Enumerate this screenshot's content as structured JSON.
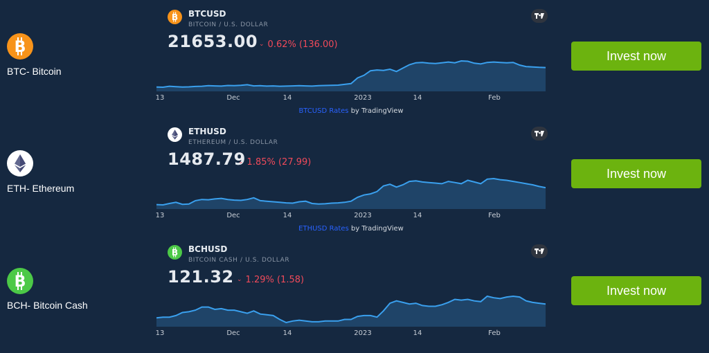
{
  "tradingview_credit": "by TradingView",
  "x_ticks": [
    "13",
    "Dec",
    "14",
    "2023",
    "14",
    "Feb"
  ],
  "colors": {
    "background": "#152840",
    "button": "#6cb30f",
    "negative": "#f04a5a",
    "line": "#3aa0ee",
    "link": "#2962ff"
  },
  "rows": [
    {
      "coin_label": "BTC- Bitcoin",
      "coin_icon": "bitcoin-icon",
      "icon_color": "#f7931a",
      "symbol": "BTCUSD",
      "description": "BITCOIN / U.S. DOLLAR",
      "price": "21653.00",
      "change": "0.62% (136.00)",
      "rates_link": "BTCUSD Rates",
      "button_label": "Invest now",
      "series": [
        16500,
        16450,
        16700,
        16600,
        16500,
        16550,
        16650,
        16700,
        16850,
        16800,
        16750,
        16900,
        16850,
        16950,
        17100,
        16800,
        16850,
        16750,
        16800,
        16700,
        16750,
        16800,
        16850,
        16800,
        16750,
        16850,
        16900,
        16950,
        17000,
        17200,
        17400,
        18900,
        19600,
        20800,
        21000,
        20900,
        21200,
        20600,
        21500,
        22400,
        22900,
        23000,
        22800,
        22700,
        22900,
        23100,
        22900,
        23400,
        23300,
        22800,
        22600,
        23000,
        23100,
        23000,
        22900,
        23000,
        22300,
        21900,
        21800,
        21700,
        21650
      ]
    },
    {
      "coin_label": "ETH- Ethereum",
      "coin_icon": "ethereum-icon",
      "icon_color": "#ffffff",
      "symbol": "ETHUSD",
      "description": "ETHEREUM / U.S. DOLLAR",
      "price": "1487.79",
      "change": "1.85% (27.99)",
      "rates_link": "ETHUSD Rates",
      "button_label": "Invest now",
      "series": [
        1190,
        1185,
        1210,
        1230,
        1195,
        1200,
        1260,
        1280,
        1275,
        1290,
        1300,
        1280,
        1270,
        1265,
        1280,
        1310,
        1260,
        1250,
        1240,
        1230,
        1220,
        1215,
        1240,
        1250,
        1210,
        1200,
        1205,
        1215,
        1220,
        1230,
        1250,
        1320,
        1360,
        1380,
        1420,
        1520,
        1550,
        1500,
        1540,
        1600,
        1610,
        1590,
        1580,
        1570,
        1560,
        1600,
        1580,
        1560,
        1620,
        1590,
        1560,
        1640,
        1650,
        1630,
        1620,
        1600,
        1580,
        1560,
        1540,
        1510,
        1490
      ]
    },
    {
      "coin_label": "BCH- Bitcoin Cash",
      "coin_icon": "bitcoin-cash-icon",
      "icon_color": "#4cc947",
      "symbol": "BCHUSD",
      "description": "BITCOIN CASH / U.S. DOLLAR",
      "price": "121.32",
      "change": "1.29% (1.58)",
      "rates_link": "BCHUSD Rates",
      "button_label": "Invest now",
      "series": [
        103,
        104,
        104,
        106,
        110,
        111,
        113,
        117,
        117,
        114,
        115,
        113,
        113,
        111,
        109,
        112,
        108,
        107,
        106,
        101,
        97,
        99,
        100,
        99,
        98,
        98,
        99,
        99,
        99,
        101,
        101,
        105,
        106,
        106,
        104,
        112,
        122,
        125,
        123,
        121,
        122,
        119,
        118,
        118,
        120,
        123,
        127,
        126,
        127,
        125,
        124,
        131,
        129,
        128,
        130,
        131,
        130,
        125,
        123,
        122,
        121
      ]
    }
  ]
}
